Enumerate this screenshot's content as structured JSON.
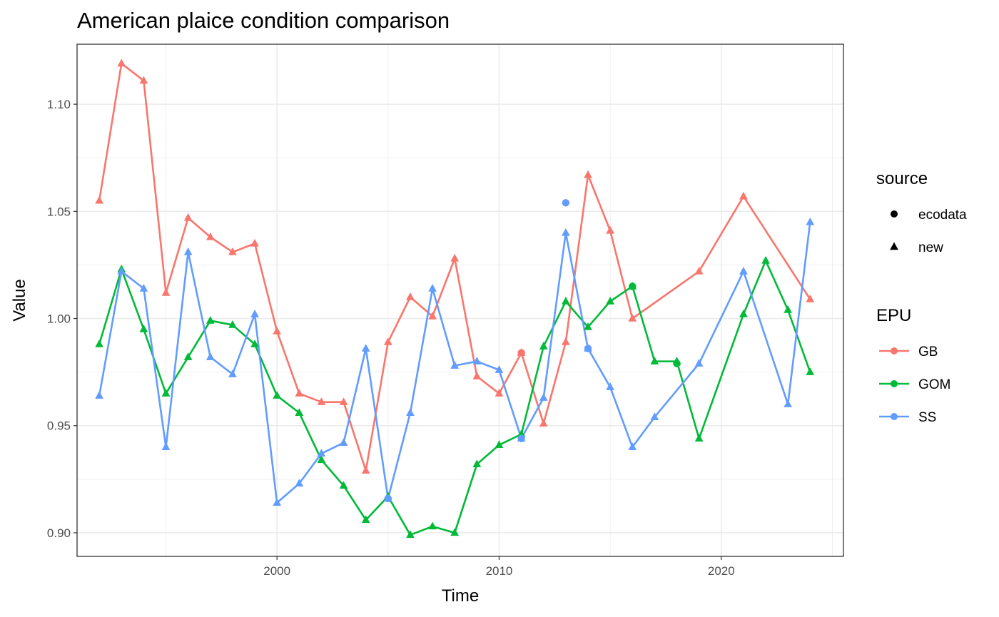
{
  "chart_data": {
    "type": "line",
    "title": "American plaice condition comparison",
    "xlabel": "Time",
    "ylabel": "Value",
    "xlim": [
      1991,
      2025.5
    ],
    "ylim": [
      0.889,
      1.128
    ],
    "x_ticks": [
      2000,
      2010,
      2020
    ],
    "x_tick_labels": [
      "2000",
      "2010",
      "2020"
    ],
    "y_ticks": [
      0.9,
      0.95,
      1.0,
      1.05,
      1.1
    ],
    "y_tick_labels": [
      "0.90",
      "0.95",
      "1.00",
      "1.05",
      "1.10"
    ],
    "grid": true,
    "legend_placement": "right",
    "legend": {
      "shape_title": "source",
      "shape_entries": [
        {
          "label": "ecodata",
          "shape": "circle"
        },
        {
          "label": "new",
          "shape": "triangle"
        }
      ],
      "color_title": "EPU"
    },
    "series": [
      {
        "name": "GB",
        "color": "#F8766D",
        "x": [
          1992,
          1993,
          1994,
          1995,
          1996,
          1997,
          1998,
          1999,
          2000,
          2001,
          2002,
          2003,
          2004,
          2005,
          2006,
          2007,
          2008,
          2009,
          2010,
          2011,
          2012,
          2013,
          2014,
          2015,
          2016,
          2019,
          2021,
          2024
        ],
        "y": [
          1.055,
          1.119,
          1.111,
          1.012,
          1.047,
          1.038,
          1.031,
          1.035,
          0.994,
          0.965,
          0.961,
          0.961,
          0.929,
          0.989,
          1.01,
          1.001,
          1.028,
          0.973,
          0.965,
          0.984,
          0.951,
          0.989,
          1.067,
          1.041,
          1.0,
          1.022,
          1.057,
          1.009
        ]
      },
      {
        "name": "GOM",
        "color": "#00BA38",
        "x": [
          1992,
          1993,
          1994,
          1995,
          1996,
          1997,
          1998,
          1999,
          2000,
          2001,
          2002,
          2003,
          2004,
          2005,
          2006,
          2007,
          2008,
          2009,
          2010,
          2011,
          2012,
          2013,
          2014,
          2015,
          2016,
          2017,
          2018,
          2019,
          2021,
          2022,
          2023,
          2024
        ],
        "y": [
          0.988,
          1.023,
          0.995,
          0.965,
          0.982,
          0.999,
          0.997,
          0.988,
          0.964,
          0.956,
          0.934,
          0.922,
          0.906,
          0.917,
          0.899,
          0.903,
          0.9,
          0.932,
          0.941,
          0.946,
          0.987,
          1.008,
          0.996,
          1.008,
          1.015,
          0.98,
          0.98,
          0.944,
          1.002,
          1.027,
          1.004,
          0.975
        ]
      },
      {
        "name": "SS",
        "color": "#619CFF",
        "x": [
          1992,
          1993,
          1994,
          1995,
          1996,
          1997,
          1998,
          1999,
          2000,
          2001,
          2002,
          2003,
          2004,
          2005,
          2006,
          2007,
          2008,
          2009,
          2010,
          2011,
          2012,
          2013,
          2014,
          2015,
          2016,
          2017,
          2019,
          2021,
          2023,
          2024
        ],
        "y": [
          0.964,
          1.022,
          1.014,
          0.94,
          1.031,
          0.982,
          0.974,
          1.002,
          0.914,
          0.923,
          0.937,
          0.942,
          0.986,
          0.916,
          0.956,
          1.014,
          0.978,
          0.98,
          0.976,
          0.944,
          0.963,
          1.04,
          0.986,
          0.968,
          0.94,
          0.954,
          0.979,
          1.022,
          0.96,
          1.045
        ]
      }
    ],
    "ecodata_points": [
      {
        "series": "GB",
        "x": 2011,
        "y": 0.984
      },
      {
        "series": "GOM",
        "x": 2016,
        "y": 1.015
      },
      {
        "series": "GOM",
        "x": 2018,
        "y": 0.979
      },
      {
        "series": "SS",
        "x": 2005,
        "y": 0.916
      },
      {
        "series": "SS",
        "x": 2011,
        "y": 0.944
      },
      {
        "series": "SS",
        "x": 2013,
        "y": 1.054
      },
      {
        "series": "SS",
        "x": 2014,
        "y": 0.986
      }
    ]
  }
}
